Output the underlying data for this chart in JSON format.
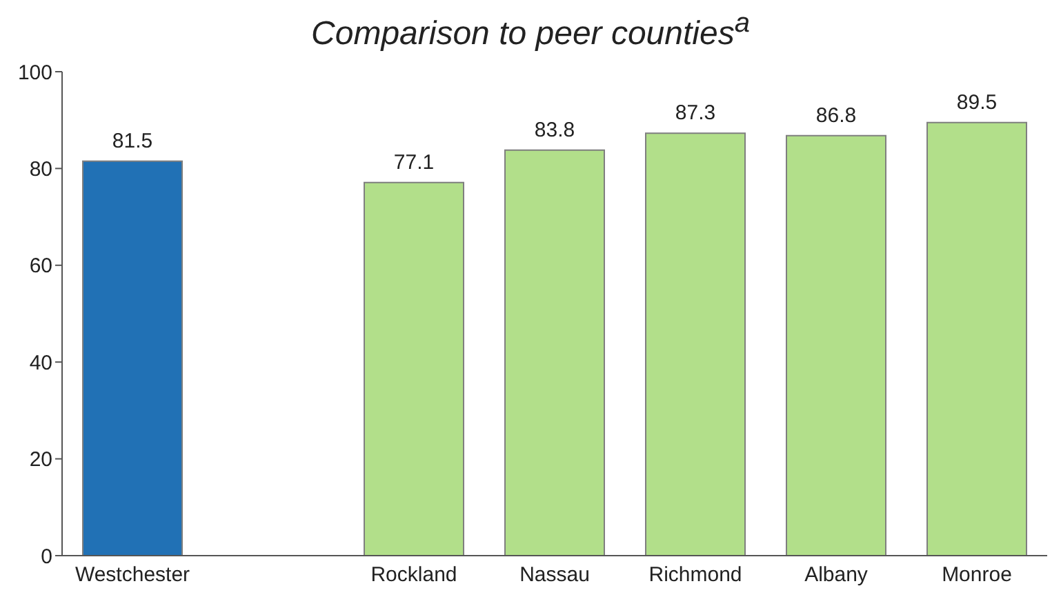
{
  "chart_data": {
    "type": "bar",
    "title": "Comparison to peer counties$^{a}$",
    "categories": [
      "Westchester",
      null,
      "Rockland",
      "Nassau",
      "Richmond",
      "Albany",
      "Monroe"
    ],
    "values": [
      81.5,
      null,
      77.1,
      83.8,
      87.3,
      86.8,
      89.5
    ],
    "colors": [
      "#2171b5",
      null,
      "#b2df8a",
      "#b2df8a",
      "#b2df8a",
      "#b2df8a",
      "#b2df8a"
    ],
    "ylim": [
      0,
      100
    ],
    "yticks": [
      0,
      20,
      40,
      60,
      80,
      100
    ],
    "grid": false,
    "data_labels": true
  }
}
